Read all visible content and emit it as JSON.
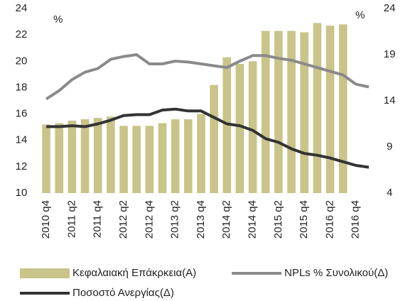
{
  "chart_data": {
    "type": "bar_line",
    "categories": [
      "2010 q4",
      null,
      "2011 q2",
      null,
      "2011 q4",
      null,
      "2012 q2",
      null,
      "2012 q4",
      null,
      "2013 q2",
      null,
      "2013 q4",
      null,
      "2014 q2",
      null,
      "2014 q4",
      null,
      "2015 q2",
      null,
      "2015 q4",
      null,
      "2016 q2",
      null,
      "2016 q4",
      null
    ],
    "y_unit": "%",
    "y2_unit": "%",
    "ylim": [
      10,
      24
    ],
    "yticks": [
      10,
      12,
      14,
      16,
      18,
      20,
      22,
      24
    ],
    "y2lim": [
      4,
      24
    ],
    "y2ticks": [
      4,
      9,
      14,
      19,
      24
    ],
    "series": [
      {
        "name": "Κεφαλαιακή Επάκρκεια(Α)",
        "color": "#c8c48a",
        "kind": "bar",
        "values": [
          15.2,
          15.3,
          15.5,
          15.6,
          15.7,
          15.8,
          15.1,
          15.1,
          15.1,
          15.3,
          15.6,
          15.6,
          16.0,
          18.2,
          20.3,
          19.8,
          20.0,
          22.3,
          22.3,
          22.3,
          22.2,
          22.9,
          22.7,
          22.8,
          null,
          null
        ]
      },
      {
        "name": "NPLs % Συνολικού(Δ)",
        "color": "#8a8a8a",
        "kind": "line",
        "axis": "y2",
        "values": [
          14.2,
          15.1,
          16.3,
          17.1,
          17.5,
          18.5,
          18.8,
          19.0,
          18.0,
          18.0,
          18.3,
          18.2,
          18.0,
          17.8,
          17.6,
          18.3,
          18.9,
          18.9,
          18.6,
          18.4,
          18.0,
          17.6,
          17.2,
          16.8,
          15.8,
          15.5
        ]
      },
      {
        "name": "Ποσοστό Ανεργίας(Δ)",
        "color": "#333333",
        "kind": "line",
        "axis": "y2",
        "values": [
          11.2,
          11.2,
          11.3,
          11.2,
          11.5,
          11.9,
          12.4,
          12.5,
          12.5,
          13.0,
          13.1,
          12.9,
          12.9,
          12.2,
          11.5,
          11.3,
          10.8,
          9.9,
          9.5,
          8.8,
          8.3,
          8.1,
          7.8,
          7.4,
          7.0,
          6.8
        ]
      }
    ]
  }
}
